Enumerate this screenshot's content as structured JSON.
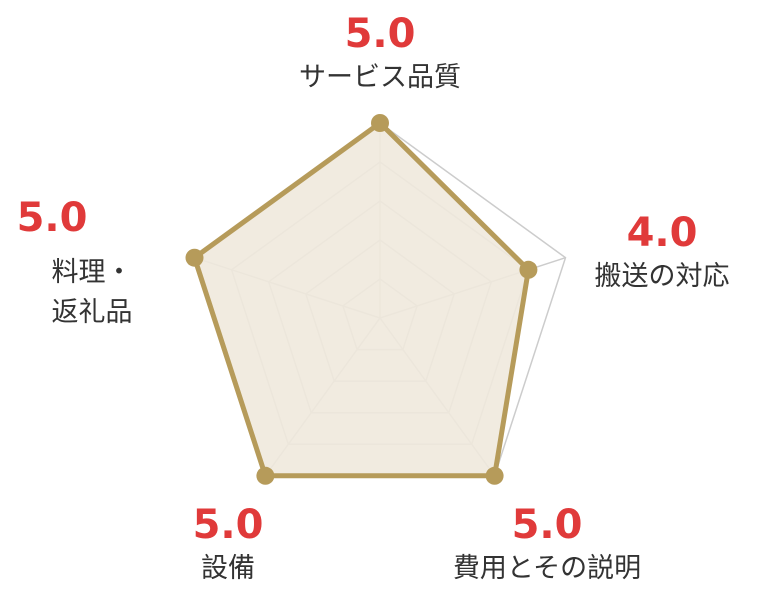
{
  "chart_data": {
    "type": "radar",
    "max": 5,
    "rings": 5,
    "axes": [
      {
        "label_lines": [
          "サービス品質"
        ],
        "value": 5.0,
        "score": "5.0"
      },
      {
        "label_lines": [
          "搬送の対応"
        ],
        "value": 4.0,
        "score": "4.0"
      },
      {
        "label_lines": [
          "費用とその説明"
        ],
        "value": 5.0,
        "score": "5.0"
      },
      {
        "label_lines": [
          "設備"
        ],
        "value": 5.0,
        "score": "5.0"
      },
      {
        "label_lines": [
          "料理・",
          "返礼品"
        ],
        "value": 5.0,
        "score": "5.0"
      }
    ]
  },
  "colors": {
    "score": "#e03a3a",
    "label": "#333333",
    "grid": "#cccccc",
    "series_stroke": "#b69b5a",
    "series_fill": "#efe9dd"
  }
}
